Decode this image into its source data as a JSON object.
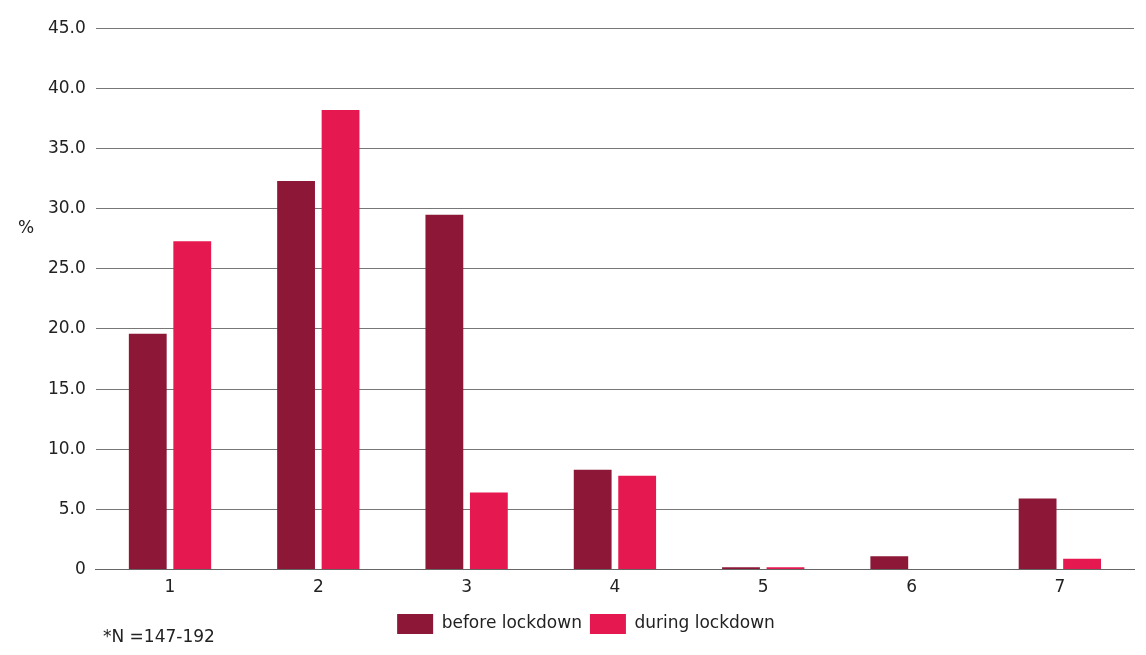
{
  "chart_data": {
    "type": "bar",
    "categories": [
      "1",
      "2",
      "3",
      "4",
      "5",
      "6",
      "7"
    ],
    "series": [
      {
        "name": "before lockdown",
        "color": "#8c1736",
        "values": [
          19.6,
          32.3,
          29.5,
          8.3,
          0.2,
          1.1,
          5.9
        ]
      },
      {
        "name": "during lockdown",
        "color": "#e5194f",
        "values": [
          27.3,
          38.2,
          6.4,
          7.8,
          0.2,
          0,
          0.9
        ]
      }
    ],
    "ylabel": "%",
    "ylim": [
      0,
      45
    ],
    "yticks": [
      {
        "value": 0,
        "label": "0"
      },
      {
        "value": 5,
        "label": "5.0"
      },
      {
        "value": 10,
        "label": "10.0"
      },
      {
        "value": 15,
        "label": "15.0"
      },
      {
        "value": 20,
        "label": "20.0"
      },
      {
        "value": 25,
        "label": "25.0"
      },
      {
        "value": 30,
        "label": "30.0"
      },
      {
        "value": 35,
        "label": "35.0"
      },
      {
        "value": 40,
        "label": "40.0"
      },
      {
        "value": 45,
        "label": "45.0"
      }
    ],
    "grid": "y",
    "legend": "bottom",
    "annotations": [
      "*N =147-192"
    ]
  }
}
